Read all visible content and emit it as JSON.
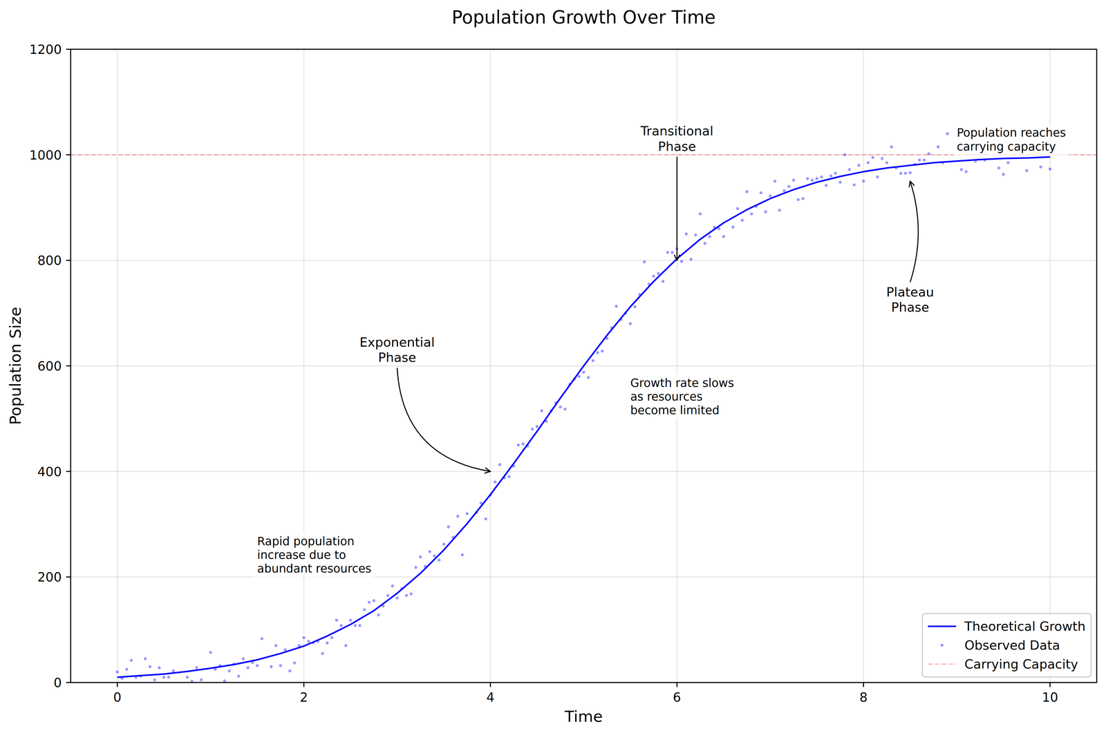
{
  "chart_data": {
    "type": "line",
    "title": "Population Growth Over Time",
    "x_label": "Time",
    "y_label": "Population Size",
    "xlim": [
      -0.5,
      10.5
    ],
    "ylim": [
      0,
      1200
    ],
    "xticks": [
      0,
      2,
      4,
      6,
      8,
      10
    ],
    "yticks": [
      0,
      200,
      400,
      600,
      800,
      1000,
      1200
    ],
    "grid": true,
    "legend": "lower right",
    "series": [
      {
        "name": "Theoretical Growth",
        "type": "line",
        "color": "#0000ff",
        "line_style": "solid",
        "x": [
          0,
          0.25,
          0.5,
          0.75,
          1,
          1.25,
          1.5,
          1.75,
          2,
          2.25,
          2.5,
          2.75,
          3,
          3.25,
          3.5,
          3.75,
          4,
          4.25,
          4.5,
          4.75,
          5,
          5.25,
          5.5,
          5.75,
          6,
          6.25,
          6.5,
          6.75,
          7,
          7.25,
          7.5,
          7.75,
          8,
          8.25,
          8.5,
          8.75,
          9,
          9.25,
          9.5,
          9.75,
          10
        ],
        "values": [
          10,
          13,
          16,
          21,
          27,
          34,
          43,
          55,
          69,
          88,
          110,
          136,
          169,
          207,
          251,
          301,
          356,
          415,
          476,
          539,
          600,
          658,
          712,
          760,
          803,
          840,
          871,
          896,
          917,
          934,
          948,
          959,
          968,
          975,
          980,
          985,
          988,
          991,
          993,
          994,
          996
        ]
      },
      {
        "name": "Observed Data",
        "type": "scatter",
        "color": "#0000ff",
        "marker": "circle",
        "x": [
          0,
          0.05,
          0.1,
          0.15,
          0.2,
          0.25,
          0.3,
          0.35,
          0.4,
          0.45,
          0.5,
          0.55,
          0.6,
          0.75,
          0.8,
          0.85,
          0.9,
          1.0,
          1.05,
          1.1,
          1.15,
          1.2,
          1.25,
          1.3,
          1.35,
          1.4,
          1.45,
          1.5,
          1.55,
          1.65,
          1.7,
          1.75,
          1.8,
          1.85,
          1.9,
          1.95,
          2.0,
          2.05,
          2.1,
          2.15,
          2.2,
          2.25,
          2.3,
          2.35,
          2.4,
          2.45,
          2.5,
          2.55,
          2.6,
          2.65,
          2.7,
          2.75,
          2.8,
          2.85,
          2.9,
          2.95,
          3.0,
          3.05,
          3.1,
          3.15,
          3.2,
          3.25,
          3.3,
          3.35,
          3.4,
          3.45,
          3.5,
          3.55,
          3.6,
          3.65,
          3.7,
          3.75,
          3.85,
          3.9,
          3.95,
          4.0,
          4.05,
          4.1,
          4.15,
          4.2,
          4.25,
          4.3,
          4.35,
          4.4,
          4.45,
          4.5,
          4.55,
          4.6,
          4.65,
          4.7,
          4.75,
          4.8,
          4.85,
          4.9,
          4.95,
          5.0,
          5.05,
          5.1,
          5.15,
          5.2,
          5.25,
          5.3,
          5.35,
          5.4,
          5.45,
          5.5,
          5.55,
          5.6,
          5.65,
          5.7,
          5.75,
          5.8,
          5.85,
          5.9,
          5.95,
          6.0,
          6.05,
          6.1,
          6.15,
          6.2,
          6.25,
          6.3,
          6.35,
          6.4,
          6.45,
          6.5,
          6.6,
          6.65,
          6.7,
          6.75,
          6.8,
          6.85,
          6.9,
          6.95,
          7.0,
          7.05,
          7.1,
          7.15,
          7.2,
          7.25,
          7.3,
          7.35,
          7.4,
          7.45,
          7.5,
          7.55,
          7.6,
          7.65,
          7.7,
          7.75,
          7.8,
          7.85,
          7.9,
          7.95,
          8.0,
          8.05,
          8.1,
          8.15,
          8.2,
          8.25,
          8.3,
          8.35,
          8.4,
          8.45,
          8.5,
          8.55,
          8.6,
          8.65,
          8.7,
          8.8,
          8.85,
          8.9,
          9.05,
          9.1,
          9.2,
          9.3,
          9.45,
          9.5,
          9.55,
          9.75,
          9.9,
          10.0
        ],
        "values": [
          20,
          8,
          25,
          42,
          10,
          12,
          45,
          30,
          5,
          28,
          10,
          10,
          22,
          10,
          2,
          28,
          5,
          57,
          25,
          32,
          3,
          22,
          35,
          12,
          45,
          28,
          38,
          32,
          83,
          30,
          70,
          32,
          62,
          22,
          37,
          70,
          85,
          78,
          75,
          78,
          55,
          75,
          85,
          118,
          108,
          70,
          118,
          108,
          108,
          138,
          152,
          155,
          128,
          145,
          165,
          183,
          160,
          178,
          165,
          168,
          218,
          238,
          220,
          248,
          240,
          232,
          262,
          295,
          275,
          315,
          242,
          320,
          322,
          340,
          310,
          355,
          380,
          413,
          388,
          390,
          410,
          450,
          452,
          448,
          480,
          485,
          515,
          495,
          515,
          530,
          522,
          518,
          565,
          575,
          580,
          588,
          578,
          610,
          625,
          628,
          652,
          672,
          713,
          688,
          700,
          680,
          712,
          735,
          797,
          755,
          770,
          775,
          760,
          815,
          815,
          822,
          798,
          850,
          802,
          848,
          888,
          832,
          845,
          863,
          860,
          845,
          863,
          898,
          876,
          930,
          888,
          902,
          928,
          892,
          922,
          950,
          895,
          932,
          940,
          952,
          915,
          917,
          955,
          952,
          955,
          958,
          942,
          960,
          965,
          948,
          1000,
          972,
          943,
          980,
          950,
          985,
          995,
          958,
          993,
          985,
          1015,
          975,
          965,
          965,
          966,
          982,
          990,
          990,
          1002,
          1015,
          985,
          1040,
          972,
          968,
          988,
          990,
          975,
          963,
          985,
          970,
          977,
          973
        ]
      },
      {
        "name": "Carrying Capacity",
        "type": "hline",
        "color": "#ff0000",
        "line_style": "dashed",
        "values": [
          1000
        ]
      }
    ],
    "annotations": [
      {
        "text": "Exponential\nPhase",
        "xy": [
          4,
          400
        ],
        "xytext": [
          3,
          630
        ]
      },
      {
        "text": "Rapid population\nincrease due to\nabundant resources",
        "x": 1.5,
        "y": 200
      },
      {
        "text": "Transitional\nPhase",
        "xy": [
          6,
          800
        ],
        "xytext": [
          6,
          1030
        ]
      },
      {
        "text": "Growth rate slows\nas resources\nbecome limited",
        "x": 5.5,
        "y": 500
      },
      {
        "text": "Plateau\nPhase",
        "xy": [
          8.5,
          950
        ],
        "xytext": [
          8.5,
          725
        ]
      },
      {
        "text": "Population reaches\ncarrying capacity",
        "x": 9,
        "y": 1000
      }
    ]
  }
}
